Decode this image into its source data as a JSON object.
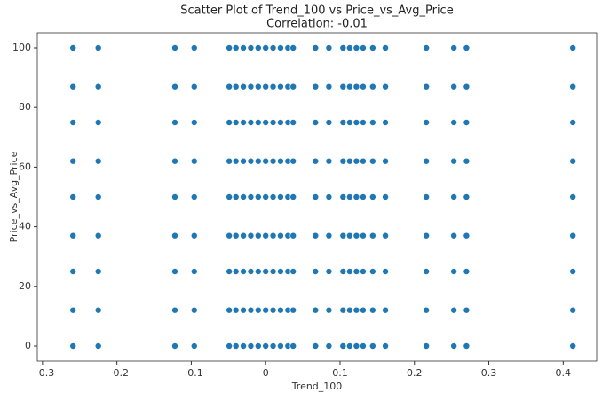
{
  "chart_data": {
    "type": "scatter",
    "title": "Scatter Plot of Trend_100 vs Price_vs_Avg_Price",
    "subtitle": "Correlation: -0.01",
    "xlabel": "Trend_100",
    "ylabel": "Price_vs_Avg_Price",
    "color": "#1f77b4",
    "xlim": [
      -0.307,
      0.445
    ],
    "ylim": [
      -5.06,
      105.06
    ],
    "xticks": [
      {
        "value": -0.3,
        "label": "−0.3"
      },
      {
        "value": -0.2,
        "label": "−0.2"
      },
      {
        "value": -0.1,
        "label": "−0.1"
      },
      0.0,
      0.1,
      0.2,
      0.3,
      0.4
    ],
    "yticks": [
      0,
      20,
      40,
      60,
      80,
      100
    ],
    "x": [
      -0.259,
      -0.259,
      -0.259,
      -0.259,
      -0.259,
      -0.259,
      -0.259,
      -0.259,
      -0.259,
      -0.225,
      -0.225,
      -0.225,
      -0.225,
      -0.225,
      -0.225,
      -0.225,
      -0.225,
      -0.225,
      -0.122,
      -0.122,
      -0.122,
      -0.122,
      -0.122,
      -0.122,
      -0.122,
      -0.122,
      -0.122,
      -0.096,
      -0.096,
      -0.096,
      -0.096,
      -0.096,
      -0.096,
      -0.096,
      -0.096,
      -0.096,
      -0.049,
      -0.049,
      -0.049,
      -0.049,
      -0.049,
      -0.049,
      -0.049,
      -0.049,
      -0.049,
      -0.04,
      -0.04,
      -0.04,
      -0.04,
      -0.04,
      -0.04,
      -0.04,
      -0.04,
      -0.04,
      -0.03,
      -0.03,
      -0.03,
      -0.03,
      -0.03,
      -0.03,
      -0.03,
      -0.03,
      -0.03,
      -0.02,
      -0.02,
      -0.02,
      -0.02,
      -0.02,
      -0.02,
      -0.02,
      -0.02,
      -0.02,
      -0.01,
      -0.01,
      -0.01,
      -0.01,
      -0.01,
      -0.01,
      -0.01,
      -0.01,
      -0.01,
      0.0,
      0.0,
      0.0,
      0.0,
      0.0,
      0.0,
      0.0,
      0.0,
      0.0,
      0.01,
      0.01,
      0.01,
      0.01,
      0.01,
      0.01,
      0.01,
      0.01,
      0.01,
      0.02,
      0.02,
      0.02,
      0.02,
      0.02,
      0.02,
      0.02,
      0.02,
      0.02,
      0.03,
      0.03,
      0.03,
      0.03,
      0.03,
      0.03,
      0.03,
      0.03,
      0.03,
      0.037,
      0.037,
      0.037,
      0.037,
      0.037,
      0.037,
      0.037,
      0.037,
      0.037,
      0.067,
      0.067,
      0.067,
      0.067,
      0.067,
      0.067,
      0.067,
      0.067,
      0.067,
      0.085,
      0.085,
      0.085,
      0.085,
      0.085,
      0.085,
      0.085,
      0.085,
      0.085,
      0.104,
      0.104,
      0.104,
      0.104,
      0.104,
      0.104,
      0.104,
      0.104,
      0.104,
      0.113,
      0.113,
      0.113,
      0.113,
      0.113,
      0.113,
      0.113,
      0.113,
      0.113,
      0.122,
      0.122,
      0.122,
      0.122,
      0.122,
      0.122,
      0.122,
      0.122,
      0.122,
      0.131,
      0.131,
      0.131,
      0.131,
      0.131,
      0.131,
      0.131,
      0.131,
      0.131,
      0.144,
      0.144,
      0.144,
      0.144,
      0.144,
      0.144,
      0.144,
      0.144,
      0.144,
      0.161,
      0.161,
      0.161,
      0.161,
      0.161,
      0.161,
      0.161,
      0.161,
      0.161,
      0.216,
      0.216,
      0.216,
      0.216,
      0.216,
      0.216,
      0.216,
      0.216,
      0.216,
      0.253,
      0.253,
      0.253,
      0.253,
      0.253,
      0.253,
      0.253,
      0.253,
      0.253,
      0.27,
      0.27,
      0.27,
      0.27,
      0.27,
      0.27,
      0.27,
      0.27,
      0.27,
      0.413,
      0.413,
      0.413,
      0.413,
      0.413,
      0.413,
      0.413,
      0.413,
      0.413
    ],
    "y": [
      0,
      12,
      25,
      37,
      50,
      62,
      75,
      87,
      100,
      0,
      12,
      25,
      37,
      50,
      62,
      75,
      87,
      100,
      0,
      12,
      25,
      37,
      50,
      62,
      75,
      87,
      100,
      0,
      12,
      25,
      37,
      50,
      62,
      75,
      87,
      100,
      0,
      12,
      25,
      37,
      50,
      62,
      75,
      87,
      100,
      0,
      12,
      25,
      37,
      50,
      62,
      75,
      87,
      100,
      0,
      12,
      25,
      37,
      50,
      62,
      75,
      87,
      100,
      0,
      12,
      25,
      37,
      50,
      62,
      75,
      87,
      100,
      0,
      12,
      25,
      37,
      50,
      62,
      75,
      87,
      100,
      0,
      12,
      25,
      37,
      50,
      62,
      75,
      87,
      100,
      0,
      12,
      25,
      37,
      50,
      62,
      75,
      87,
      100,
      0,
      12,
      25,
      37,
      50,
      62,
      75,
      87,
      100,
      0,
      12,
      25,
      37,
      50,
      62,
      75,
      87,
      100,
      0,
      12,
      25,
      37,
      50,
      62,
      75,
      87,
      100,
      0,
      12,
      25,
      37,
      50,
      62,
      75,
      87,
      100,
      0,
      12,
      25,
      37,
      50,
      62,
      75,
      87,
      100,
      0,
      12,
      25,
      37,
      50,
      62,
      75,
      87,
      100,
      0,
      12,
      25,
      37,
      50,
      62,
      75,
      87,
      100,
      0,
      12,
      25,
      37,
      50,
      62,
      75,
      87,
      100,
      0,
      12,
      25,
      37,
      50,
      62,
      75,
      87,
      100,
      0,
      12,
      25,
      37,
      50,
      62,
      75,
      87,
      100,
      0,
      12,
      25,
      37,
      50,
      62,
      75,
      87,
      100,
      0,
      12,
      25,
      37,
      50,
      62,
      75,
      87,
      100,
      0,
      12,
      25,
      37,
      50,
      62,
      75,
      87,
      100,
      0,
      12,
      25,
      37,
      50,
      62,
      75,
      87,
      100,
      0,
      12,
      25,
      37,
      50,
      62,
      75,
      87,
      100
    ]
  }
}
